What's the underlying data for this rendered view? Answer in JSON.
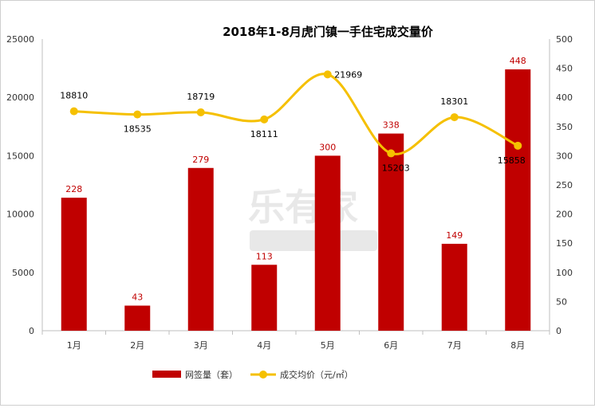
{
  "chart_data": {
    "type": "bar",
    "title": "2018年1-8月虎门镇一手住宅成交量价",
    "categories": [
      "1月",
      "2月",
      "3月",
      "4月",
      "5月",
      "6月",
      "7月",
      "8月"
    ],
    "series": [
      {
        "name": "成交均价（元/㎡）",
        "axis": "left",
        "mark": "line",
        "values": [
          18810,
          18535,
          18719,
          18111,
          21969,
          15203,
          18301,
          15858
        ]
      },
      {
        "name": "网签量（套）",
        "axis": "right",
        "mark": "bar",
        "values": [
          228,
          43,
          279,
          113,
          300,
          338,
          149,
          448
        ]
      }
    ],
    "y_left": {
      "ylim": [
        0,
        25000
      ],
      "ticks": [
        0,
        5000,
        10000,
        15000,
        20000,
        25000
      ]
    },
    "y_right": {
      "ylim": [
        0,
        500
      ],
      "ticks": [
        0,
        50,
        100,
        150,
        200,
        250,
        300,
        350,
        400,
        450,
        500
      ]
    },
    "legend_position": "bottom",
    "grid": false,
    "colors": {
      "bar": "#c00000",
      "line": "#f5c000",
      "bar_label": "#c00000",
      "line_label": "#000000"
    }
  }
}
